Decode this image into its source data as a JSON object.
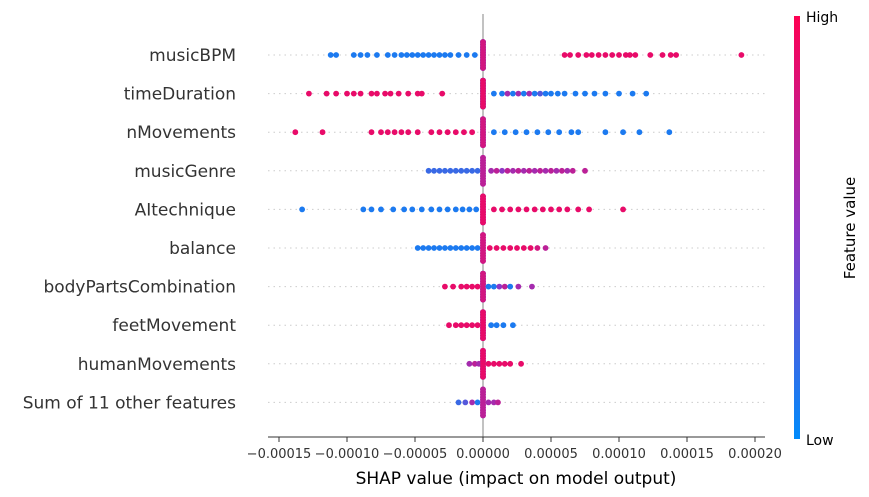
{
  "chart_data": {
    "type": "scatter",
    "subtype": "shap-beeswarm",
    "title": "",
    "xlabel": "SHAP value (impact on model output)",
    "xlim": [
      -0.00016,
      0.000205
    ],
    "x_ticks": [
      -0.00015,
      -0.0001,
      -5e-05,
      0.0,
      5e-05,
      0.0001,
      0.00015,
      0.0002
    ],
    "x_tick_labels": [
      "−0.00015",
      "−0.00010",
      "−0.00005",
      "0.00000",
      "0.00005",
      "0.00010",
      "0.00015",
      "0.00020"
    ],
    "grid": false,
    "colorbar": {
      "title": "Feature value",
      "high_label": "High",
      "low_label": "Low",
      "low_color": "#008bfb",
      "high_color": "#ff0052"
    },
    "features": [
      {
        "name": "musicBPM",
        "points": [
          [
            -0.000112,
            0.1
          ],
          [
            -0.000108,
            0.1
          ],
          [
            -9.5e-05,
            0.1
          ],
          [
            -9e-05,
            0.1
          ],
          [
            -8.5e-05,
            0.1
          ],
          [
            -7.8e-05,
            0.1
          ],
          [
            -7e-05,
            0.1
          ],
          [
            -6.5e-05,
            0.1
          ],
          [
            -6e-05,
            0.1
          ],
          [
            -5.6e-05,
            0.1
          ],
          [
            -5.2e-05,
            0.1
          ],
          [
            -4.8e-05,
            0.1
          ],
          [
            -4.4e-05,
            0.1
          ],
          [
            -4e-05,
            0.1
          ],
          [
            -3.6e-05,
            0.1
          ],
          [
            -3.2e-05,
            0.1
          ],
          [
            -2.8e-05,
            0.1
          ],
          [
            -2.4e-05,
            0.1
          ],
          [
            -1.8e-05,
            0.1
          ],
          [
            -1.2e-05,
            0.1
          ],
          [
            -6e-06,
            0.1
          ],
          [
            0.0,
            0.4
          ],
          [
            0.0,
            0.6
          ],
          [
            0.0,
            0.2
          ],
          [
            0.0,
            0.8
          ],
          [
            6e-05,
            0.9
          ],
          [
            6.4e-05,
            0.9
          ],
          [
            7e-05,
            0.9
          ],
          [
            7.6e-05,
            0.9
          ],
          [
            8e-05,
            0.9
          ],
          [
            8.5e-05,
            0.9
          ],
          [
            9e-05,
            0.9
          ],
          [
            9.5e-05,
            0.9
          ],
          [
            0.0001,
            0.9
          ],
          [
            0.000105,
            0.9
          ],
          [
            0.000108,
            0.9
          ],
          [
            0.000112,
            0.9
          ],
          [
            0.000123,
            0.9
          ],
          [
            0.000132,
            0.9
          ],
          [
            0.000138,
            0.9
          ],
          [
            0.000142,
            0.9
          ],
          [
            0.00019,
            0.9
          ]
        ]
      },
      {
        "name": "timeDuration",
        "points": [
          [
            -0.000128,
            0.9
          ],
          [
            -0.000115,
            0.9
          ],
          [
            -0.000108,
            0.9
          ],
          [
            -0.0001,
            0.9
          ],
          [
            -9.5e-05,
            0.9
          ],
          [
            -9e-05,
            0.9
          ],
          [
            -8.2e-05,
            0.9
          ],
          [
            -7.8e-05,
            0.9
          ],
          [
            -7.2e-05,
            0.9
          ],
          [
            -6.8e-05,
            0.9
          ],
          [
            -6.2e-05,
            0.9
          ],
          [
            -5.5e-05,
            0.9
          ],
          [
            -4.8e-05,
            0.9
          ],
          [
            -4.5e-05,
            0.9
          ],
          [
            -3e-05,
            0.9
          ],
          [
            0.0,
            0.3
          ],
          [
            0.0,
            0.6
          ],
          [
            0.0,
            0.1
          ],
          [
            0.0,
            0.9
          ],
          [
            8e-06,
            0.1
          ],
          [
            1.4e-05,
            0.1
          ],
          [
            1.8e-05,
            0.6
          ],
          [
            2.2e-05,
            0.1
          ],
          [
            2.6e-05,
            0.6
          ],
          [
            3e-05,
            0.1
          ],
          [
            3.4e-05,
            0.6
          ],
          [
            3.8e-05,
            0.1
          ],
          [
            4.2e-05,
            0.3
          ],
          [
            4.6e-05,
            0.1
          ],
          [
            5e-05,
            0.1
          ],
          [
            5.5e-05,
            0.1
          ],
          [
            6e-05,
            0.1
          ],
          [
            6.8e-05,
            0.1
          ],
          [
            7.5e-05,
            0.1
          ],
          [
            8.2e-05,
            0.1
          ],
          [
            9e-05,
            0.1
          ],
          [
            0.0001,
            0.1
          ],
          [
            0.00011,
            0.1
          ],
          [
            0.00012,
            0.1
          ]
        ]
      },
      {
        "name": "nMovements",
        "points": [
          [
            -0.000138,
            0.9
          ],
          [
            -0.000118,
            0.9
          ],
          [
            -8.2e-05,
            0.9
          ],
          [
            -7.5e-05,
            0.9
          ],
          [
            -7e-05,
            0.9
          ],
          [
            -6.5e-05,
            0.9
          ],
          [
            -6e-05,
            0.9
          ],
          [
            -5.5e-05,
            0.9
          ],
          [
            -4.8e-05,
            0.9
          ],
          [
            -3.8e-05,
            0.9
          ],
          [
            -3.2e-05,
            0.9
          ],
          [
            -2.6e-05,
            0.9
          ],
          [
            -2e-05,
            0.9
          ],
          [
            -1.4e-05,
            0.9
          ],
          [
            -8e-06,
            0.9
          ],
          [
            0.0,
            0.5
          ],
          [
            0.0,
            0.2
          ],
          [
            0.0,
            0.8
          ],
          [
            8e-06,
            0.1
          ],
          [
            1.6e-05,
            0.1
          ],
          [
            2.4e-05,
            0.1
          ],
          [
            3.2e-05,
            0.1
          ],
          [
            4e-05,
            0.1
          ],
          [
            4.8e-05,
            0.1
          ],
          [
            5.6e-05,
            0.1
          ],
          [
            6.5e-05,
            0.1
          ],
          [
            7e-05,
            0.1
          ],
          [
            9e-05,
            0.1
          ],
          [
            0.000103,
            0.1
          ],
          [
            0.000115,
            0.1
          ],
          [
            0.000137,
            0.1
          ]
        ]
      },
      {
        "name": "musicGenre",
        "points": [
          [
            -4e-05,
            0.2
          ],
          [
            -3.6e-05,
            0.2
          ],
          [
            -3.2e-05,
            0.2
          ],
          [
            -2.8e-05,
            0.2
          ],
          [
            -2.4e-05,
            0.2
          ],
          [
            -2e-05,
            0.2
          ],
          [
            -1.6e-05,
            0.2
          ],
          [
            -1.2e-05,
            0.2
          ],
          [
            -8e-06,
            0.2
          ],
          [
            -4e-06,
            0.2
          ],
          [
            0.0,
            0.5
          ],
          [
            0.0,
            0.7
          ],
          [
            6e-06,
            0.6
          ],
          [
            1e-05,
            0.7
          ],
          [
            1.4e-05,
            0.5
          ],
          [
            1.8e-05,
            0.7
          ],
          [
            2.2e-05,
            0.6
          ],
          [
            2.6e-05,
            0.7
          ],
          [
            3e-05,
            0.6
          ],
          [
            3.4e-05,
            0.7
          ],
          [
            3.8e-05,
            0.6
          ],
          [
            4.2e-05,
            0.7
          ],
          [
            4.6e-05,
            0.6
          ],
          [
            5e-05,
            0.7
          ],
          [
            5.4e-05,
            0.6
          ],
          [
            5.8e-05,
            0.7
          ],
          [
            6.2e-05,
            0.6
          ],
          [
            6.6e-05,
            0.7
          ],
          [
            7.5e-05,
            0.7
          ]
        ]
      },
      {
        "name": "AItechnique",
        "points": [
          [
            -0.000133,
            0.1
          ],
          [
            -8.8e-05,
            0.1
          ],
          [
            -8.2e-05,
            0.1
          ],
          [
            -7.5e-05,
            0.1
          ],
          [
            -6.6e-05,
            0.1
          ],
          [
            -5.8e-05,
            0.1
          ],
          [
            -5.2e-05,
            0.1
          ],
          [
            -4.5e-05,
            0.1
          ],
          [
            -3.8e-05,
            0.1
          ],
          [
            -3.2e-05,
            0.1
          ],
          [
            -2.6e-05,
            0.1
          ],
          [
            -2e-05,
            0.1
          ],
          [
            -1.5e-05,
            0.1
          ],
          [
            -1e-05,
            0.1
          ],
          [
            -5e-06,
            0.1
          ],
          [
            0.0,
            0.4
          ],
          [
            0.0,
            0.7
          ],
          [
            0.0,
            0.9
          ],
          [
            8e-06,
            0.9
          ],
          [
            1.4e-05,
            0.9
          ],
          [
            2e-05,
            0.9
          ],
          [
            2.6e-05,
            0.9
          ],
          [
            3.2e-05,
            0.9
          ],
          [
            3.8e-05,
            0.9
          ],
          [
            4.4e-05,
            0.9
          ],
          [
            5e-05,
            0.9
          ],
          [
            5.6e-05,
            0.9
          ],
          [
            6.2e-05,
            0.9
          ],
          [
            7e-05,
            0.9
          ],
          [
            7.8e-05,
            0.9
          ],
          [
            0.000103,
            0.9
          ]
        ]
      },
      {
        "name": "balance",
        "points": [
          [
            -4.8e-05,
            0.1
          ],
          [
            -4.4e-05,
            0.1
          ],
          [
            -4e-05,
            0.1
          ],
          [
            -3.6e-05,
            0.1
          ],
          [
            -3.2e-05,
            0.1
          ],
          [
            -2.8e-05,
            0.1
          ],
          [
            -2.4e-05,
            0.1
          ],
          [
            -2e-05,
            0.1
          ],
          [
            -1.6e-05,
            0.1
          ],
          [
            -1.2e-05,
            0.1
          ],
          [
            -8e-06,
            0.1
          ],
          [
            -4e-06,
            0.1
          ],
          [
            0.0,
            0.5
          ],
          [
            0.0,
            0.8
          ],
          [
            5e-06,
            0.9
          ],
          [
            1e-05,
            0.9
          ],
          [
            1.5e-05,
            0.9
          ],
          [
            2e-05,
            0.9
          ],
          [
            2.5e-05,
            0.9
          ],
          [
            3e-05,
            0.9
          ],
          [
            3.5e-05,
            0.9
          ],
          [
            4e-05,
            0.8
          ],
          [
            4.6e-05,
            0.7
          ]
        ]
      },
      {
        "name": "bodyPartsCombination",
        "points": [
          [
            -2.8e-05,
            0.9
          ],
          [
            -2.2e-05,
            0.9
          ],
          [
            -1.6e-05,
            0.9
          ],
          [
            -1.2e-05,
            0.9
          ],
          [
            -8e-06,
            0.9
          ],
          [
            -4e-06,
            0.9
          ],
          [
            0.0,
            0.1
          ],
          [
            0.0,
            0.5
          ],
          [
            0.0,
            0.8
          ],
          [
            4e-06,
            0.1
          ],
          [
            8e-06,
            0.1
          ],
          [
            1.2e-05,
            0.5
          ],
          [
            1.6e-05,
            0.7
          ],
          [
            2e-05,
            0.1
          ],
          [
            2.6e-05,
            0.6
          ],
          [
            3.6e-05,
            0.6
          ]
        ]
      },
      {
        "name": "feetMovement",
        "points": [
          [
            -2.5e-05,
            0.9
          ],
          [
            -2e-05,
            0.9
          ],
          [
            -1.6e-05,
            0.9
          ],
          [
            -1.2e-05,
            0.9
          ],
          [
            -8e-06,
            0.9
          ],
          [
            -4e-06,
            0.9
          ],
          [
            0.0,
            0.1
          ],
          [
            0.0,
            0.5
          ],
          [
            0.0,
            0.9
          ],
          [
            6e-06,
            0.1
          ],
          [
            1e-05,
            0.1
          ],
          [
            1.5e-05,
            0.1
          ],
          [
            2.2e-05,
            0.1
          ]
        ]
      },
      {
        "name": "humanMovements",
        "points": [
          [
            -1e-05,
            0.6
          ],
          [
            -6e-06,
            0.7
          ],
          [
            -3e-06,
            0.6
          ],
          [
            0.0,
            0.1
          ],
          [
            0.0,
            0.5
          ],
          [
            0.0,
            0.9
          ],
          [
            4e-06,
            0.9
          ],
          [
            8e-06,
            0.9
          ],
          [
            1.2e-05,
            0.9
          ],
          [
            1.6e-05,
            0.9
          ],
          [
            2e-05,
            0.9
          ],
          [
            2.8e-05,
            0.9
          ]
        ]
      },
      {
        "name": "Sum of 11 other features",
        "points": [
          [
            -1.8e-05,
            0.2
          ],
          [
            -1.3e-05,
            0.3
          ],
          [
            -8e-06,
            0.6
          ],
          [
            -4e-06,
            0.1
          ],
          [
            0.0,
            0.5
          ],
          [
            0.0,
            0.7
          ],
          [
            4e-06,
            0.6
          ],
          [
            8e-06,
            0.6
          ],
          [
            1.1e-05,
            0.7
          ]
        ]
      }
    ]
  }
}
